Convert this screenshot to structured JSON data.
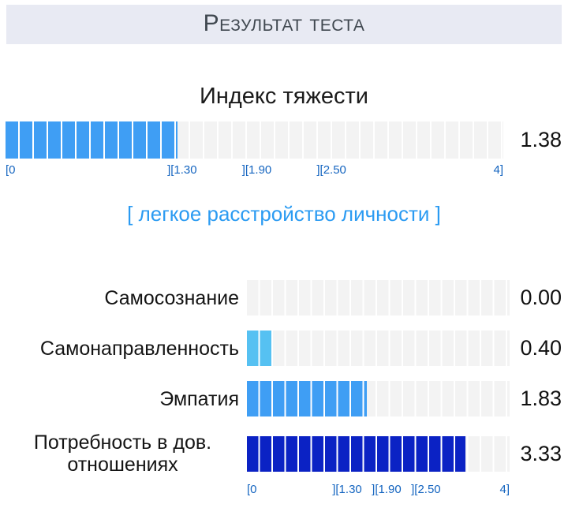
{
  "header": {
    "title": "Результат теста"
  },
  "main_chart": {
    "title": "Индекс тяжести",
    "value": "1.38",
    "num": 1.38,
    "max": 4,
    "color": "#3f9ef4",
    "verdict": "[ легкое расстройство личности ]",
    "scale_labels": [
      {
        "text": "[0",
        "pos": 0
      },
      {
        "text": "][1.30",
        "pos": 0.325
      },
      {
        "text": "][1.90",
        "pos": 0.475
      },
      {
        "text": "][2.50",
        "pos": 0.625
      },
      {
        "text": "4]",
        "pos": 1
      }
    ]
  },
  "subscales": [
    {
      "label": "Самосознание",
      "value": "0.00",
      "num": 0.0,
      "color": "#3f9ef4"
    },
    {
      "label": "Самонаправленность",
      "value": "0.40",
      "num": 0.4,
      "color": "#56c1f2"
    },
    {
      "label": "Эмпатия",
      "value": "1.83",
      "num": 1.83,
      "color": "#3f9ef4"
    },
    {
      "label": "Потребность в дов. отношениях",
      "value": "3.33",
      "num": 3.33,
      "color": "#0b22c4"
    }
  ],
  "colors": {
    "header_bg": "#e8eaf3",
    "bar_empty": "#f3f3f3",
    "scale_text": "#1565c0",
    "verdict_text": "#2b9bf2"
  },
  "chart_data": {
    "type": "bar",
    "orientation": "horizontal",
    "title": "Результат теста",
    "subtitle": "Индекс тяжести",
    "categories": [
      "Индекс тяжести",
      "Самосознание",
      "Самонаправленность",
      "Эмпатия",
      "Потребность в дов. отношениях"
    ],
    "values": [
      1.38,
      0.0,
      0.4,
      1.83,
      3.33
    ],
    "xlim": [
      0,
      4
    ],
    "scale_breakpoints": [
      0,
      1.3,
      1.9,
      2.5,
      4
    ],
    "annotation": "[ легкое расстройство личности ]",
    "grid": false,
    "legend": false
  }
}
